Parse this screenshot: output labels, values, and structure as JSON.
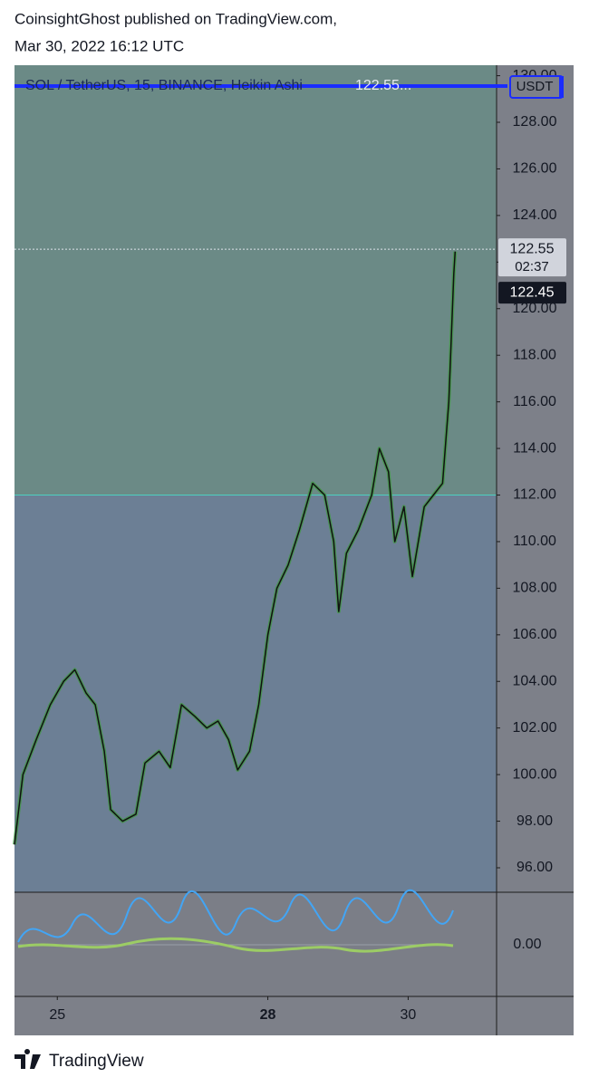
{
  "header": {
    "line1": "CoinsightGhost published on TradingView.com,",
    "line2": "Mar 30, 2022 16:12 UTC"
  },
  "chart_data": {
    "type": "line",
    "legend": "SOL / TetherUS, 15, BINANCE, Heikin Ashi",
    "legend_value": "122.55...",
    "currency": "USDT",
    "color": "#111111",
    "x": [
      24.39,
      24.51,
      24.7,
      24.9,
      25.09,
      25.25,
      25.41,
      25.54,
      25.67,
      25.76,
      25.93,
      26.12,
      26.25,
      26.45,
      26.61,
      26.77,
      26.96,
      27.13,
      27.29,
      27.44,
      27.57,
      27.74,
      27.87,
      28.0,
      28.13,
      28.29,
      28.45,
      28.64,
      28.81,
      28.94,
      29.01,
      29.12,
      29.29,
      29.48,
      29.59,
      29.72,
      29.81,
      29.94,
      30.06,
      30.23,
      30.36,
      30.49,
      30.58,
      30.65,
      30.67
    ],
    "values": [
      97,
      100,
      101.5,
      103,
      104,
      104.5,
      103.5,
      103,
      101,
      98.5,
      98,
      98.3,
      100.5,
      101,
      100.3,
      103,
      102.5,
      102,
      102.3,
      101.5,
      100.2,
      101,
      103,
      106,
      108,
      109,
      110.5,
      112.5,
      112,
      110,
      107,
      109.5,
      110.5,
      112,
      114,
      113,
      110,
      111.5,
      108.5,
      111.5,
      112,
      112.5,
      116,
      121.5,
      122.45
    ],
    "zone_boundary": 112,
    "last_price": 122.55,
    "countdown": "02:37",
    "xlim": [
      24.39,
      31.26
    ],
    "xticks": [
      25,
      28,
      30
    ],
    "ylim": [
      94.95,
      130.45
    ],
    "yticks": [
      {
        "value": 96,
        "label": "96.00"
      },
      {
        "value": 98,
        "label": "98.00"
      },
      {
        "value": 100,
        "label": "100.00"
      },
      {
        "value": 102,
        "label": "102.00"
      },
      {
        "value": 104,
        "label": "104.00"
      },
      {
        "value": 106,
        "label": "106.00"
      },
      {
        "value": 108,
        "label": "108.00"
      },
      {
        "value": 110,
        "label": "110.00"
      },
      {
        "value": 112,
        "label": "112.00"
      },
      {
        "value": 114,
        "label": "114.00"
      },
      {
        "value": 116,
        "label": "116.00"
      },
      {
        "value": 118,
        "label": "118.00"
      },
      {
        "value": 120,
        "label": "120.00"
      },
      {
        "value": 122,
        "label": "122.00"
      },
      {
        "value": 124,
        "label": "124.00"
      },
      {
        "value": 126,
        "label": "126.00"
      },
      {
        "value": 128,
        "label": "128.00"
      },
      {
        "value": 130,
        "label": "130.00"
      }
    ],
    "indicator_tick": "0.00"
  },
  "footer": {
    "brand": "TradingView"
  }
}
